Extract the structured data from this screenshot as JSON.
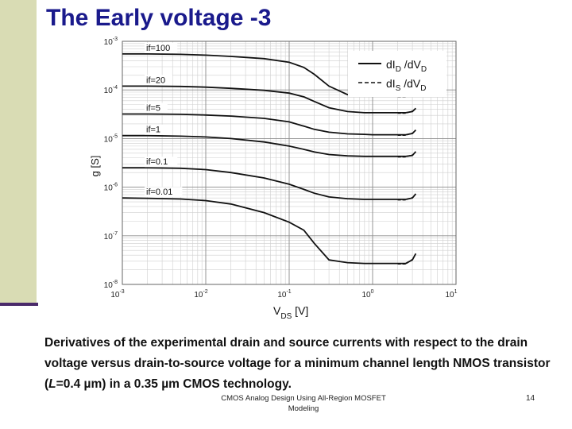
{
  "slide": {
    "title": "The Early voltage -3",
    "caption_parts": [
      "Derivatives of the experimental drain and source currents with respect to the drain voltage versus drain-to-source voltage for a minimum channel length NMOS transistor (",
      "L",
      "=0.4 ",
      "µ",
      "m) in a 0.35 ",
      "µ",
      "m CMOS technology."
    ],
    "footer_lines": [
      "CMOS Analog Design Using All-Region MOSFET",
      "Modeling"
    ],
    "page_number": "14"
  },
  "colors": {
    "title": "#1a1a8c",
    "left_bar": "#d9dcb4",
    "left_rule": "#4a2a6a",
    "curve": "#111111",
    "grid_major": "#8a8a8a",
    "grid_minor": "#cfcfcf"
  },
  "chart_data": {
    "type": "line",
    "title": "",
    "xlabel_parts": [
      "V",
      "DS",
      " [V]"
    ],
    "ylabel": "g [S]",
    "xscale": "log",
    "yscale": "log",
    "xlim": [
      0.001,
      10
    ],
    "ylim": [
      1e-08,
      0.001
    ],
    "x_ticks": [
      {
        "value": 0.001,
        "label": "10",
        "exp": "-3"
      },
      {
        "value": 0.01,
        "label": "10",
        "exp": "-2"
      },
      {
        "value": 0.1,
        "label": "10",
        "exp": "-1"
      },
      {
        "value": 1,
        "label": "10",
        "exp": "0"
      },
      {
        "value": 10,
        "label": "10",
        "exp": "1"
      }
    ],
    "y_ticks": [
      {
        "value": 0.001,
        "label": "10",
        "exp": "-3"
      },
      {
        "value": 0.0001,
        "label": "10",
        "exp": "-4"
      },
      {
        "value": 1e-05,
        "label": "10",
        "exp": "-5"
      },
      {
        "value": 1e-06,
        "label": "10",
        "exp": "-6"
      },
      {
        "value": 1e-07,
        "label": "10",
        "exp": "-7"
      },
      {
        "value": 1e-08,
        "label": "10",
        "exp": "-8"
      }
    ],
    "grid": true,
    "legend_position": "top-right",
    "legend": [
      {
        "style": "solid",
        "parts": [
          "dI",
          "D",
          " /dV",
          "D"
        ]
      },
      {
        "style": "dashed",
        "parts": [
          "dI",
          "S",
          " /dV",
          "D"
        ]
      }
    ],
    "x": [
      0.001,
      0.002,
      0.005,
      0.01,
      0.02,
      0.05,
      0.1,
      0.15,
      0.2,
      0.3,
      0.5,
      0.8,
      1,
      1.5,
      2,
      2.5,
      3,
      3.3
    ],
    "series": [
      {
        "label": "if=100",
        "dIS_dVD_ends_at_x": 3.0,
        "values": [
          0.00055,
          0.00055,
          0.00054,
          0.00052,
          0.00049,
          0.00044,
          0.00037,
          0.00029,
          0.00021,
          0.00012,
          8e-05,
          7.5e-05,
          7.5e-05,
          7.5e-05,
          7.5e-05,
          7.5e-05,
          8e-05,
          9.5e-05
        ]
      },
      {
        "label": "if=20",
        "dIS_dVD_ends_at_x": 3.0,
        "values": [
          0.00012,
          0.00012,
          0.000118,
          0.000114,
          0.000108,
          9.8e-05,
          8.6e-05,
          7.2e-05,
          5.8e-05,
          4.3e-05,
          3.6e-05,
          3.4e-05,
          3.4e-05,
          3.4e-05,
          3.4e-05,
          3.4e-05,
          3.6e-05,
          4.2e-05
        ]
      },
      {
        "label": "if=5",
        "dIS_dVD_ends_at_x": 3.0,
        "values": [
          3.2e-05,
          3.2e-05,
          3.15e-05,
          3.05e-05,
          2.9e-05,
          2.6e-05,
          2.2e-05,
          1.8e-05,
          1.55e-05,
          1.35e-05,
          1.25e-05,
          1.22e-05,
          1.2e-05,
          1.2e-05,
          1.2e-05,
          1.2e-05,
          1.27e-05,
          1.5e-05
        ]
      },
      {
        "label": "if=1",
        "dIS_dVD_ends_at_x": 3.0,
        "values": [
          1.15e-05,
          1.15e-05,
          1.12e-05,
          1.08e-05,
          1e-05,
          8.5e-06,
          7e-06,
          6e-06,
          5.3e-06,
          4.7e-06,
          4.4e-06,
          4.3e-06,
          4.3e-06,
          4.3e-06,
          4.3e-06,
          4.3e-06,
          4.5e-06,
          5.4e-06
        ]
      },
      {
        "label": "if=0.1",
        "dIS_dVD_ends_at_x": 3.0,
        "values": [
          2.5e-06,
          2.5e-06,
          2.45e-06,
          2.3e-06,
          2e-06,
          1.55e-06,
          1.15e-06,
          9e-07,
          7.5e-07,
          6.3e-07,
          5.8e-07,
          5.6e-07,
          5.6e-07,
          5.6e-07,
          5.6e-07,
          5.6e-07,
          6e-07,
          7.3e-07
        ]
      },
      {
        "label": "if=0.01",
        "dIS_dVD_ends_at_x": 3.0,
        "values": [
          6e-07,
          5.9e-07,
          5.7e-07,
          5.3e-07,
          4.5e-07,
          3e-07,
          1.9e-07,
          1.3e-07,
          7e-08,
          3.2e-08,
          2.8e-08,
          2.7e-08,
          2.7e-08,
          2.7e-08,
          2.7e-08,
          2.7e-08,
          3.2e-08,
          4.3e-08
        ]
      }
    ]
  }
}
